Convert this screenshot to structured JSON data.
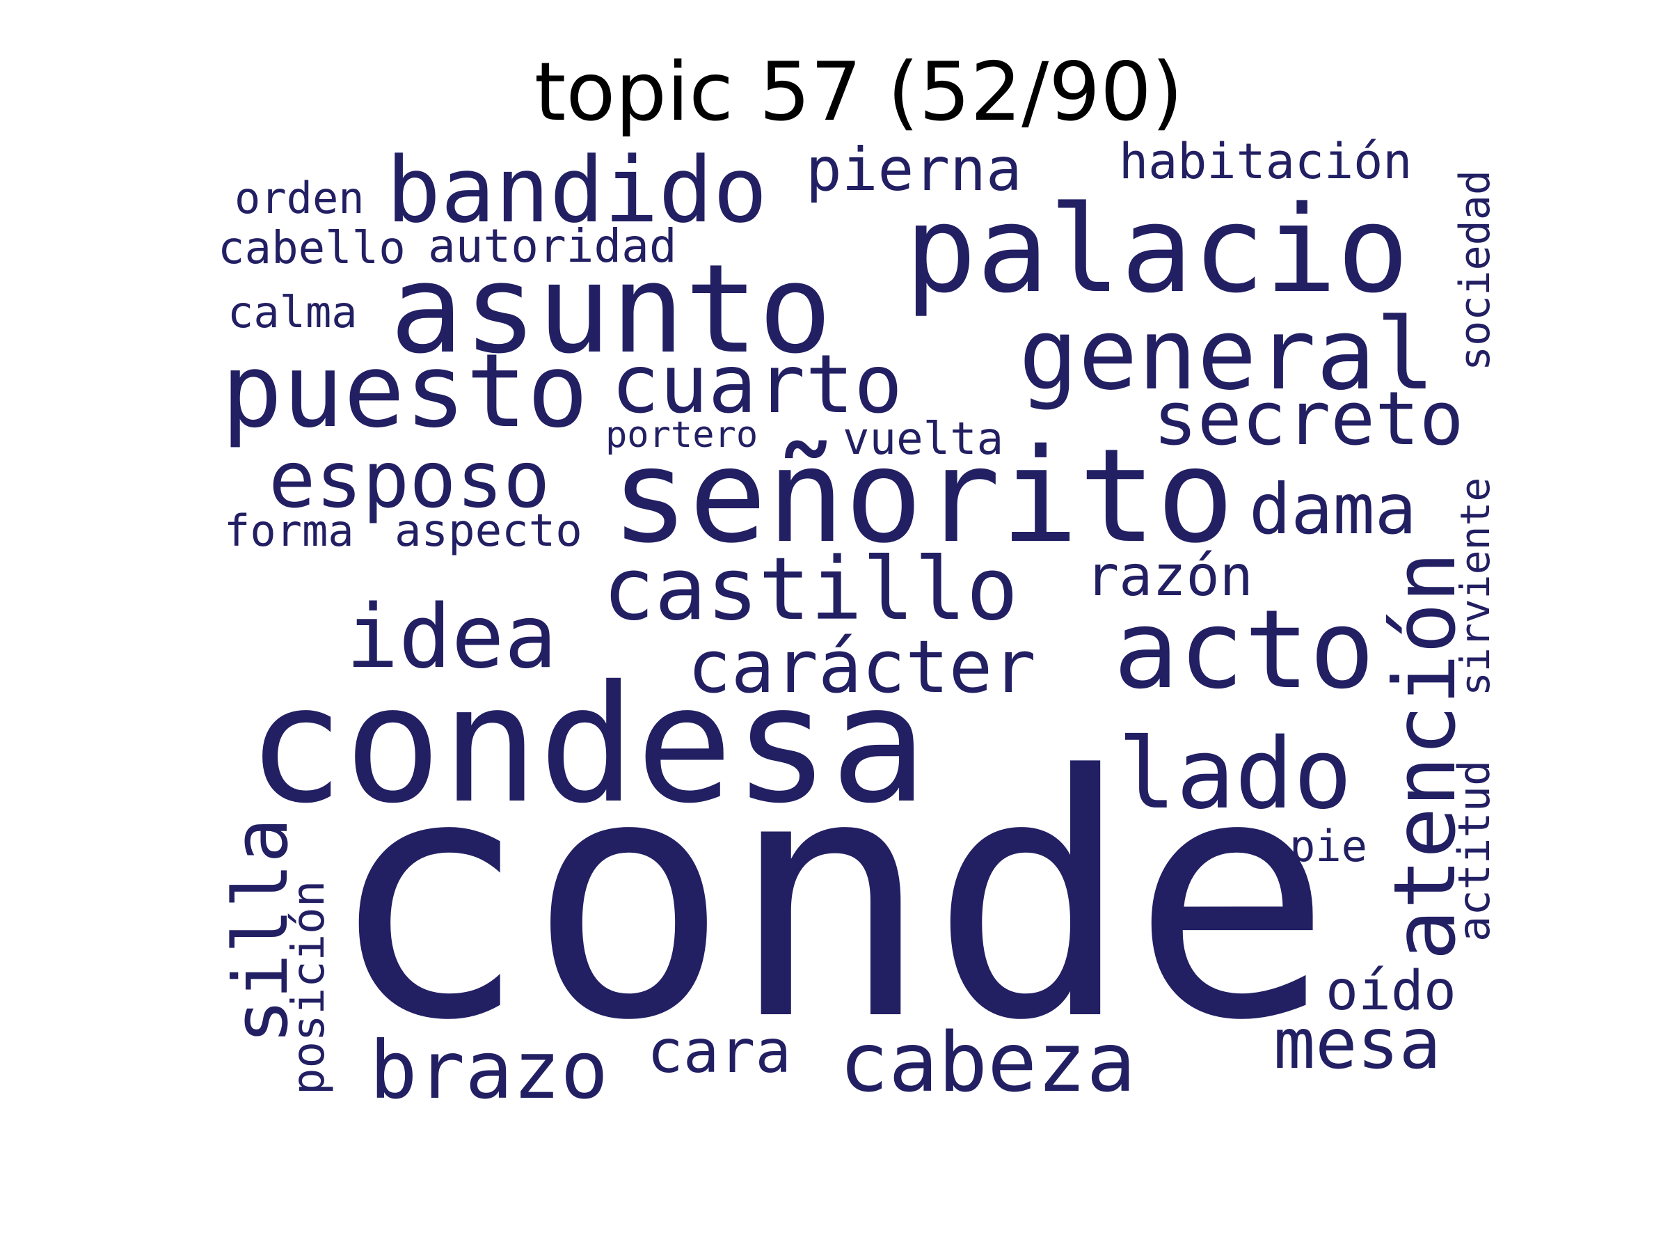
{
  "title": "topic 57 (52/90)",
  "colors": {
    "background": "#ffffff",
    "word": "#221f63",
    "title": "#000000"
  },
  "words": [
    "conde",
    "condesa",
    "señorito",
    "palacio",
    "asunto",
    "puesto",
    "bandido",
    "general",
    "acto",
    "castillo",
    "atención",
    "lado",
    "cuarto",
    "idea",
    "cabeza",
    "esposo",
    "brazo",
    "secreto",
    "carácter",
    "dama",
    "silla",
    "pierna",
    "mesa",
    "razón",
    "oído",
    "cara",
    "habitación",
    "sociedad",
    "sirviente",
    "aspecto",
    "actitud",
    "posición",
    "autoridad",
    "vuelta",
    "cabello",
    "forma",
    "orden",
    "calma",
    "pie",
    "portero"
  ]
}
